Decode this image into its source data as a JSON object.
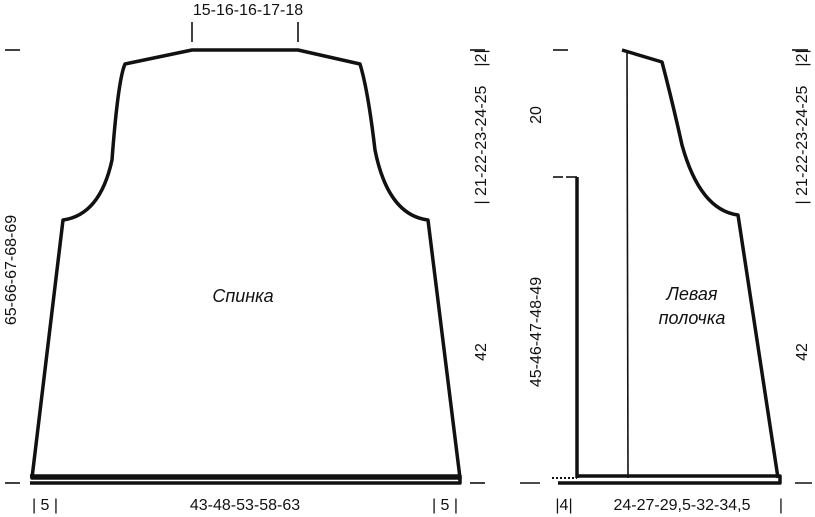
{
  "back": {
    "name": "Спинка",
    "neck_width": "15-16-16-17-18",
    "total_length": "65-66-67-68-69",
    "shoulder_drop": "|2|",
    "armhole_height": "| 21-22-23-24-25",
    "body_height": "42",
    "bottom_left_edge": "| 5 |",
    "bottom_width": "43-48-53-58-63",
    "bottom_right_edge": "| 5 |"
  },
  "left_front": {
    "name_line1": "Левая",
    "name_line2": "полочка",
    "neck_depth": "20",
    "front_edge_height": "45-46-47-48-49",
    "shoulder_drop": "|2|",
    "armhole_height": "| 21-22-23-24-25",
    "body_height": "42",
    "band_width": "|4|",
    "bottom_width": "24-27-29,5-32-34,5",
    "bottom_right_mark": "|"
  }
}
